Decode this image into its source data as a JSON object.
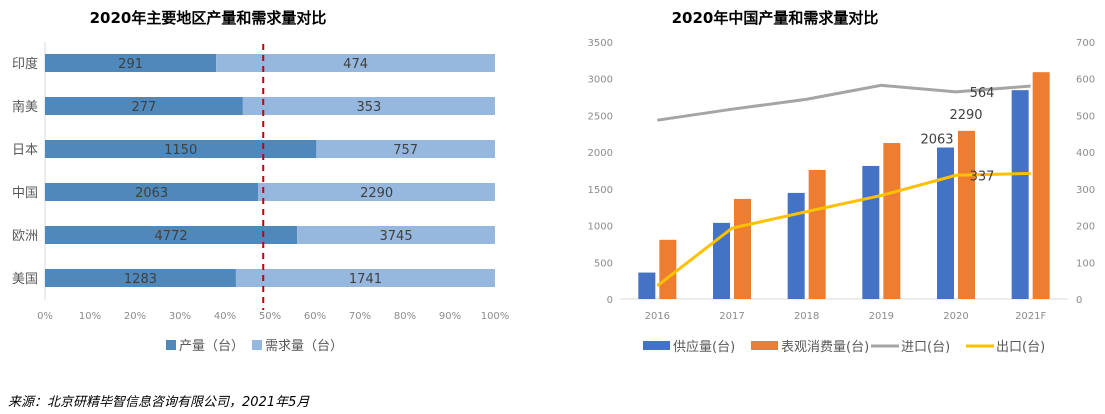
{
  "chart_data": [
    {
      "type": "bar",
      "orientation": "horizontal",
      "stacked": "percent",
      "title": "2020年主要地区产量和需求量对比",
      "categories": [
        "印度",
        "南美",
        "日本",
        "中国",
        "欧洲",
        "美国"
      ],
      "series": [
        {
          "name": "产量（台）",
          "values": [
            291,
            277,
            1150,
            2063,
            4772,
            1283
          ],
          "color": "#4f88bb"
        },
        {
          "name": "需求量（台）",
          "values": [
            474,
            353,
            757,
            2290,
            3745,
            1741
          ],
          "color": "#97b8de"
        }
      ],
      "xlim": [
        0,
        100
      ],
      "xticks": [
        "0%",
        "10%",
        "20%",
        "30%",
        "40%",
        "50%",
        "60%",
        "70%",
        "80%",
        "90%",
        "100%"
      ],
      "reference_line": {
        "value": 48.5,
        "style": "dashed",
        "color": "#c00000"
      },
      "legend": "bottom"
    },
    {
      "type": "bar+line",
      "title": "2020年中国产量和需求量对比",
      "categories": [
        "2016",
        "2017",
        "2018",
        "2019",
        "2020",
        "2021F"
      ],
      "series": [
        {
          "name": "供应量(台)",
          "type": "bar",
          "axis": "left",
          "color": "#4472c4",
          "values": [
            360,
            1037,
            1445,
            1812,
            2063,
            2844
          ],
          "labels": {
            "2020": "2063"
          }
        },
        {
          "name": "表观消费量(台)",
          "type": "bar",
          "axis": "left",
          "color": "#ed7d31",
          "values": [
            806,
            1363,
            1757,
            2124,
            2290,
            3089
          ],
          "labels": {
            "2020": "2290"
          }
        },
        {
          "name": "进口(台)",
          "type": "line",
          "axis": "right",
          "color": "#a5a5a5",
          "values": [
            487,
            517,
            544,
            582,
            564,
            580
          ],
          "labels": {
            "2020": "564"
          }
        },
        {
          "name": "出口(台)",
          "type": "line",
          "axis": "right",
          "color": "#ffc000",
          "values": [
            36,
            193,
            238,
            282,
            337,
            342
          ],
          "labels": {
            "2020": "337"
          }
        }
      ],
      "ylim_left": [
        0,
        3500
      ],
      "ylim_right": [
        0,
        700
      ],
      "yticks_left": [
        "0",
        "500",
        "1000",
        "1500",
        "2000",
        "2500",
        "3000",
        "3500"
      ],
      "yticks_right": [
        "0",
        "100",
        "200",
        "300",
        "400",
        "500",
        "600",
        "700"
      ],
      "legend": "bottom"
    }
  ],
  "source": "来源：北京研精毕智信息咨询有限公司，2021年5月"
}
